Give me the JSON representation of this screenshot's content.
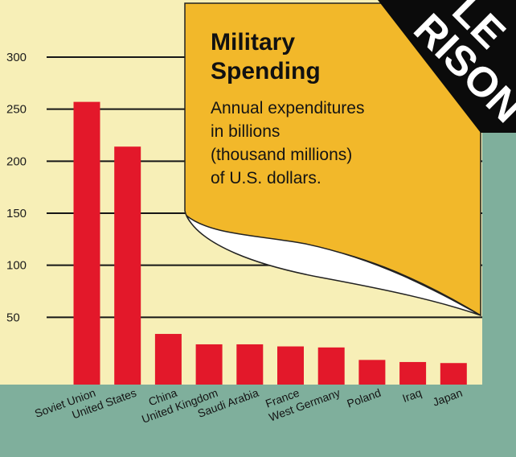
{
  "colors": {
    "background": "#7faf9c",
    "plot_background": "#f7efb7",
    "bar": "#e3182a",
    "callout": "#f2b82a",
    "banner": "#0b0b0b",
    "grid": "#161616"
  },
  "callout": {
    "title_line1": "Military",
    "title_line2": "Spending",
    "text_line1": "Annual expenditures",
    "text_line2": "in billions",
    "text_line3": "(thousand millions)",
    "text_line4": "of U.S. dollars."
  },
  "banner": {
    "line1": "LE",
    "line2": "RISON"
  },
  "chart_data": {
    "type": "bar",
    "title": "Military Spending",
    "subtitle": "Annual expenditures in billions (thousand millions) of U.S. dollars.",
    "categories": [
      "Soviet Union",
      "United States",
      "China",
      "United Kingdom",
      "Saudi Arabia",
      "France",
      "West Germany",
      "Poland",
      "Iraq",
      "Japan"
    ],
    "values": [
      257,
      214,
      34,
      24,
      24,
      22,
      21,
      9,
      7,
      6
    ],
    "y_ticks": [
      "50",
      "100",
      "150",
      "200",
      "250",
      "300"
    ],
    "ylim": [
      0,
      300
    ],
    "grid": true,
    "xlabel": "",
    "ylabel": ""
  }
}
